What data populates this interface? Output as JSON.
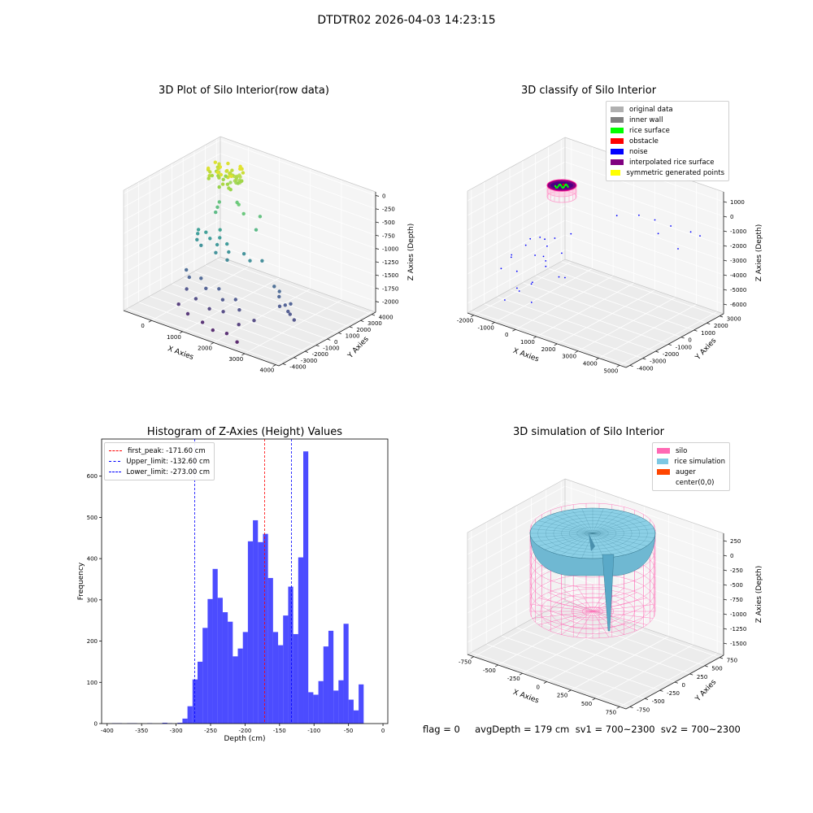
{
  "suptitle": "DTDTR02 2026-04-03 14:23:15",
  "footer": "flag = 0     avgDepth = 179 cm  sv1 = 700~2300  sv2 = 700~2300",
  "chart_data": [
    {
      "type": "scatter",
      "id": "raw",
      "title": "3D Plot of Silo Interior(row data)",
      "xlabel": "X Axies",
      "ylabel": "Y Axies",
      "zlabel": "Z Axies (Depth)",
      "xticks": [
        "0",
        "1000",
        "2000",
        "3000",
        "4000"
      ],
      "yticks": [
        "-4000",
        "-3000",
        "-2000",
        "-1000",
        "0",
        "1000",
        "2000",
        "3000",
        "4000"
      ],
      "zticks": [
        "0",
        "-250",
        "-500",
        "-750",
        "-1000",
        "-1250",
        "-1500",
        "-1750",
        "-2000"
      ],
      "xlim": [
        -700,
        4200
      ],
      "ylim": [
        -4200,
        4200
      ],
      "zlim": [
        -2150,
        100
      ],
      "colormap": "viridis",
      "points": [
        [
          400,
          2200,
          -150
        ],
        [
          450,
          2250,
          -170
        ],
        [
          500,
          2300,
          -190
        ],
        [
          550,
          2150,
          -200
        ],
        [
          600,
          2350,
          -160
        ],
        [
          520,
          2100,
          -220
        ],
        [
          480,
          2400,
          -180
        ],
        [
          580,
          2050,
          -240
        ],
        [
          420,
          2000,
          -260
        ],
        [
          620,
          2250,
          -210
        ],
        [
          660,
          2150,
          -230
        ],
        [
          380,
          2300,
          -170
        ],
        [
          540,
          2450,
          -150
        ],
        [
          300,
          1200,
          -650
        ],
        [
          350,
          900,
          -700
        ],
        [
          250,
          1500,
          -600
        ],
        [
          700,
          1800,
          -550
        ],
        [
          900,
          1400,
          -500
        ],
        [
          1200,
          1000,
          -560
        ],
        [
          1500,
          1600,
          -620
        ],
        [
          1700,
          700,
          -720
        ],
        [
          100,
          100,
          -980
        ],
        [
          150,
          -100,
          -1020
        ],
        [
          300,
          200,
          -1000
        ],
        [
          500,
          0,
          -1050
        ],
        [
          700,
          300,
          -1030
        ],
        [
          200,
          -300,
          -1100
        ],
        [
          800,
          -200,
          -1080
        ],
        [
          1000,
          100,
          -1060
        ],
        [
          1200,
          -300,
          -1120
        ],
        [
          1500,
          200,
          -1150
        ],
        [
          1800,
          -100,
          -1180
        ],
        [
          2000,
          400,
          -1200
        ],
        [
          400,
          -500,
          -1140
        ],
        [
          900,
          -600,
          -1160
        ],
        [
          1300,
          -700,
          -1200
        ],
        [
          600,
          600,
          -940
        ],
        [
          2600,
          -200,
          -1480
        ],
        [
          2900,
          -600,
          -1560
        ],
        [
          3200,
          -900,
          -1620
        ],
        [
          3400,
          -1200,
          -1660
        ],
        [
          3500,
          -1300,
          -1680
        ],
        [
          3700,
          -1500,
          -1720
        ],
        [
          3100,
          -1100,
          -1640
        ],
        [
          3300,
          -700,
          -1600
        ],
        [
          2800,
          -300,
          -1520
        ],
        [
          300,
          -1500,
          -1500
        ],
        [
          500,
          -1800,
          -1560
        ],
        [
          800,
          -1600,
          -1540
        ],
        [
          1100,
          -2000,
          -1620
        ],
        [
          1400,
          -1700,
          -1600
        ],
        [
          1700,
          -2200,
          -1680
        ],
        [
          2000,
          -1900,
          -1650
        ],
        [
          2300,
          -2400,
          -1720
        ],
        [
          600,
          -2300,
          -1700
        ],
        [
          1000,
          -2600,
          -1760
        ],
        [
          1500,
          -2800,
          -1820
        ],
        [
          1900,
          -2700,
          -1800
        ],
        [
          2500,
          -3000,
          -1880
        ],
        [
          2800,
          -2500,
          -1800
        ],
        [
          600,
          -3000,
          -1900
        ],
        [
          1000,
          -3300,
          -1960
        ],
        [
          1500,
          -3400,
          -2000
        ],
        [
          1900,
          -3600,
          -2040
        ],
        [
          2300,
          -3500,
          -2030
        ],
        [
          2700,
          -3700,
          -2080
        ]
      ]
    },
    {
      "type": "scatter",
      "id": "classify",
      "title": "3D classify of Silo Interior",
      "xlabel": "X Axies",
      "ylabel": "Y Axies",
      "zlabel": "Z Axies (Depth)",
      "xticks": [
        "-2000",
        "-1000",
        "0",
        "1000",
        "2000",
        "3000",
        "4000",
        "5000"
      ],
      "yticks": [
        "-4000",
        "-3000",
        "-2000",
        "-1000",
        "0",
        "1000",
        "2000",
        "3000"
      ],
      "zticks": [
        "1000",
        "0",
        "-1000",
        "-2000",
        "-3000",
        "-4000",
        "-5000",
        "-6000"
      ],
      "xlim": [
        -2600,
        5500
      ],
      "ylim": [
        -4300,
        3600
      ],
      "zlim": [
        -6500,
        1400
      ],
      "legend": [
        {
          "label": "original data",
          "color": "#b0b0b0"
        },
        {
          "label": "inner wall",
          "color": "#808080"
        },
        {
          "label": "rice surface",
          "color": "#00ff00"
        },
        {
          "label": "obstacle",
          "color": "#ff0000"
        },
        {
          "label": "noise",
          "color": "#0000ff"
        },
        {
          "label": "interpolated rice surface",
          "color": "#800080"
        },
        {
          "label": "symmetric generated points",
          "color": "#ffff00"
        }
      ],
      "noise_points": [
        [
          -1500,
          -2500,
          -3200
        ],
        [
          -1200,
          -1800,
          -2600
        ],
        [
          -800,
          -1000,
          -3500
        ],
        [
          -1400,
          -2200,
          -4200
        ],
        [
          -600,
          -2000,
          -2900
        ],
        [
          -1000,
          -500,
          -4100
        ],
        [
          -300,
          -1500,
          -2400
        ],
        [
          -1700,
          -3000,
          -3800
        ],
        [
          -500,
          0,
          -3600
        ],
        [
          -200,
          -700,
          -4700
        ],
        [
          -900,
          -2800,
          -5000
        ],
        [
          -1100,
          -1500,
          -5200
        ],
        [
          200,
          -2400,
          -3100
        ],
        [
          -1600,
          -800,
          -2800
        ],
        [
          -700,
          -3300,
          -4500
        ],
        [
          100,
          -200,
          -2000
        ],
        [
          -1300,
          -100,
          -3000
        ],
        [
          -400,
          -2600,
          -5600
        ],
        [
          -1800,
          -2000,
          -3400
        ],
        [
          -850,
          -1200,
          -2200
        ],
        [
          300,
          -1000,
          -4400
        ],
        [
          -1200,
          -3500,
          -5400
        ],
        [
          -600,
          -400,
          -2500
        ],
        [
          -100,
          -3000,
          -4000
        ],
        [
          2500,
          1500,
          -500
        ],
        [
          3000,
          2000,
          -800
        ],
        [
          3500,
          2500,
          -1200
        ],
        [
          4200,
          3000,
          -1500
        ],
        [
          4800,
          2800,
          -1400
        ],
        [
          3800,
          1000,
          -900
        ],
        [
          2000,
          500,
          -300
        ],
        [
          4500,
          1500,
          -1800
        ]
      ]
    },
    {
      "type": "bar",
      "id": "hist",
      "title": "Histogram of Z-Axies (Height) Values",
      "xlabel": "Depth (cm)",
      "ylabel": "Frequency",
      "xlim": [
        -408,
        7
      ],
      "ylim": [
        0,
        690
      ],
      "xticks": [
        -400,
        -350,
        -300,
        -250,
        -200,
        -150,
        -100,
        -50,
        0
      ],
      "yticks": [
        0,
        100,
        200,
        300,
        400,
        500,
        600
      ],
      "bin_width": 7.3,
      "bin_start": -393,
      "values": [
        1,
        1,
        0,
        1,
        1,
        0,
        0,
        1,
        0,
        0,
        2,
        1,
        0,
        2,
        12,
        42,
        107,
        150,
        232,
        302,
        375,
        305,
        270,
        247,
        163,
        182,
        222,
        442,
        493,
        440,
        460,
        353,
        222,
        190,
        262,
        332,
        217,
        403,
        660,
        76,
        70,
        103,
        187,
        225,
        80,
        105,
        242,
        58,
        32,
        95
      ],
      "color": "#0000ff",
      "legend": [
        {
          "label": "first_peak: -171.60 cm",
          "value": -171.6,
          "color": "#ff0000"
        },
        {
          "label": "Upper_limit: -132.60 cm",
          "value": -132.6,
          "color": "#0000ff"
        },
        {
          "label": "Lower_limit: -273.00 cm",
          "value": -273.0,
          "color": "#0000ff"
        }
      ]
    },
    {
      "type": "surface",
      "id": "sim",
      "title": "3D simulation of Silo Interior",
      "xlabel": "X Axies",
      "ylabel": "Y Axies",
      "zlabel": "Z Axies (Depth)",
      "xticks": [
        "-750",
        "-500",
        "-250",
        "0",
        "250",
        "500",
        "750"
      ],
      "yticks": [
        "-750",
        "-500",
        "-250",
        "0",
        "250",
        "500",
        "750"
      ],
      "zticks": [
        "250",
        "0",
        "-250",
        "-500",
        "-750",
        "-1000",
        "-1250",
        "-1500"
      ],
      "xlim": [
        -900,
        900
      ],
      "ylim": [
        -900,
        900
      ],
      "zlim": [
        -1600,
        380
      ],
      "silo_radius": 750,
      "silo_top": 0,
      "silo_bottom": -1250,
      "legend": [
        {
          "label": "silo",
          "color": "#ff69b4"
        },
        {
          "label": "rice simulation",
          "color": "#7ec8e3"
        },
        {
          "label": "auger",
          "color": "#ff4500"
        },
        {
          "label": "center(0,0)",
          "color": "none"
        }
      ]
    }
  ]
}
